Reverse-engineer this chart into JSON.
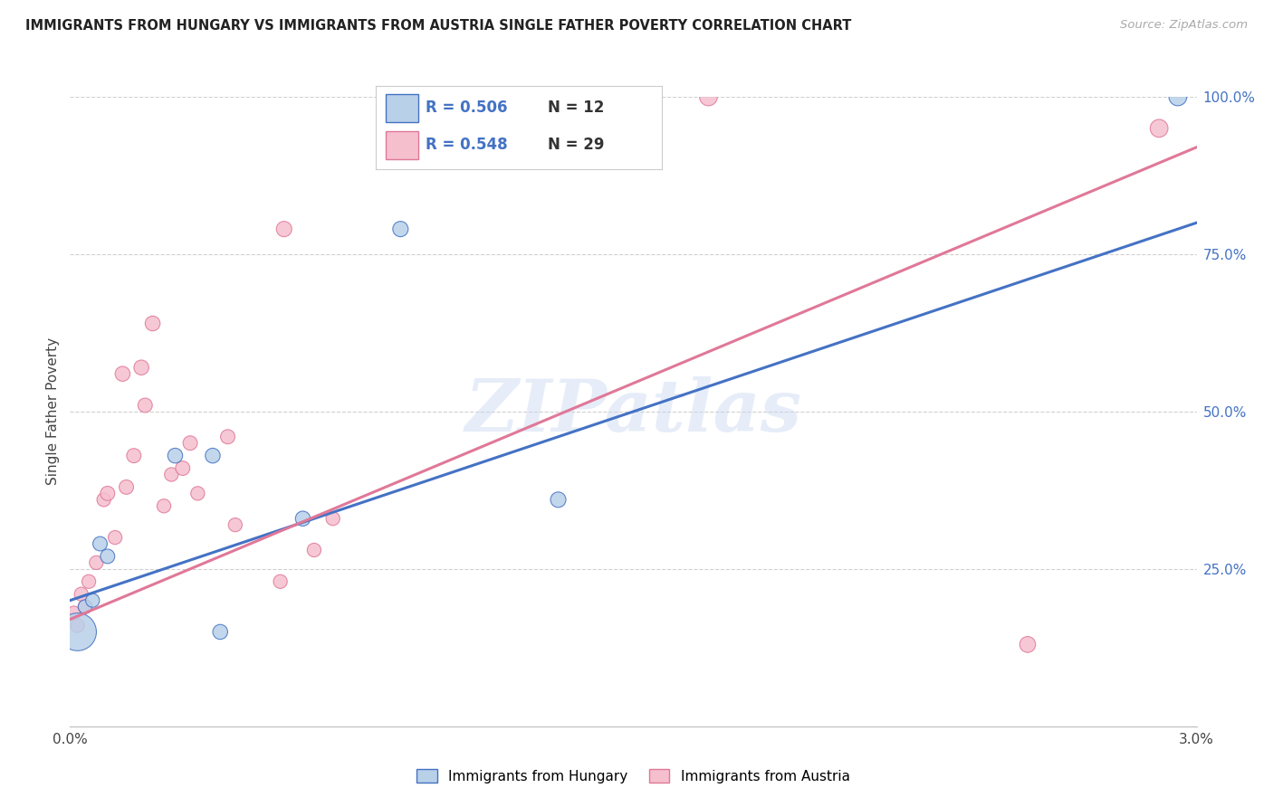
{
  "title": "IMMIGRANTS FROM HUNGARY VS IMMIGRANTS FROM AUSTRIA SINGLE FATHER POVERTY CORRELATION CHART",
  "source": "Source: ZipAtlas.com",
  "ylabel": "Single Father Poverty",
  "xlim": [
    0.0,
    3.0
  ],
  "ylim": [
    0.0,
    100.0
  ],
  "legend1_label": "Immigrants from Hungary",
  "legend2_label": "Immigrants from Austria",
  "R_hungary": "0.506",
  "N_hungary": "12",
  "R_austria": "0.548",
  "N_austria": "29",
  "hungary_color": "#b8d0e8",
  "austria_color": "#f5bfce",
  "hungary_edge_color": "#4472c4",
  "austria_edge_color": "#e07898",
  "hungary_line_color": "#4472c4",
  "austria_line_color": "#e07898",
  "hungary_x": [
    0.02,
    0.04,
    0.06,
    0.08,
    0.1,
    0.28,
    0.38,
    0.4,
    0.62,
    0.88,
    1.3,
    2.95
  ],
  "hungary_y": [
    15.0,
    19.0,
    20.0,
    29.0,
    27.0,
    43.0,
    43.0,
    15.0,
    33.0,
    79.0,
    36.0,
    100.0
  ],
  "hungary_sizes": [
    900,
    120,
    120,
    130,
    130,
    140,
    140,
    140,
    140,
    150,
    150,
    200
  ],
  "austria_x": [
    0.01,
    0.02,
    0.03,
    0.04,
    0.05,
    0.07,
    0.09,
    0.1,
    0.12,
    0.14,
    0.15,
    0.17,
    0.19,
    0.2,
    0.22,
    0.25,
    0.27,
    0.3,
    0.32,
    0.34,
    0.42,
    0.44,
    0.56,
    0.57,
    0.65,
    0.7,
    1.7,
    2.55,
    2.9
  ],
  "austria_y": [
    18.0,
    16.0,
    21.0,
    19.0,
    23.0,
    26.0,
    36.0,
    37.0,
    30.0,
    56.0,
    38.0,
    43.0,
    57.0,
    51.0,
    64.0,
    35.0,
    40.0,
    41.0,
    45.0,
    37.0,
    46.0,
    32.0,
    23.0,
    79.0,
    28.0,
    33.0,
    100.0,
    13.0,
    95.0
  ],
  "austria_sizes": [
    120,
    120,
    120,
    120,
    120,
    120,
    120,
    130,
    120,
    140,
    130,
    130,
    140,
    130,
    140,
    120,
    120,
    130,
    130,
    120,
    130,
    120,
    120,
    150,
    120,
    120,
    200,
    160,
    200
  ],
  "watermark": "ZIPatlas",
  "background_color": "#ffffff",
  "grid_color": "#d0d0d0",
  "grid_yticks": [
    25,
    50,
    75,
    100
  ],
  "right_ytick_labels": [
    "25.0%",
    "50.0%",
    "75.0%",
    "100.0%"
  ],
  "x_tick_positions": [
    0.0,
    0.5,
    1.0,
    1.5,
    2.0,
    2.5,
    3.0
  ]
}
